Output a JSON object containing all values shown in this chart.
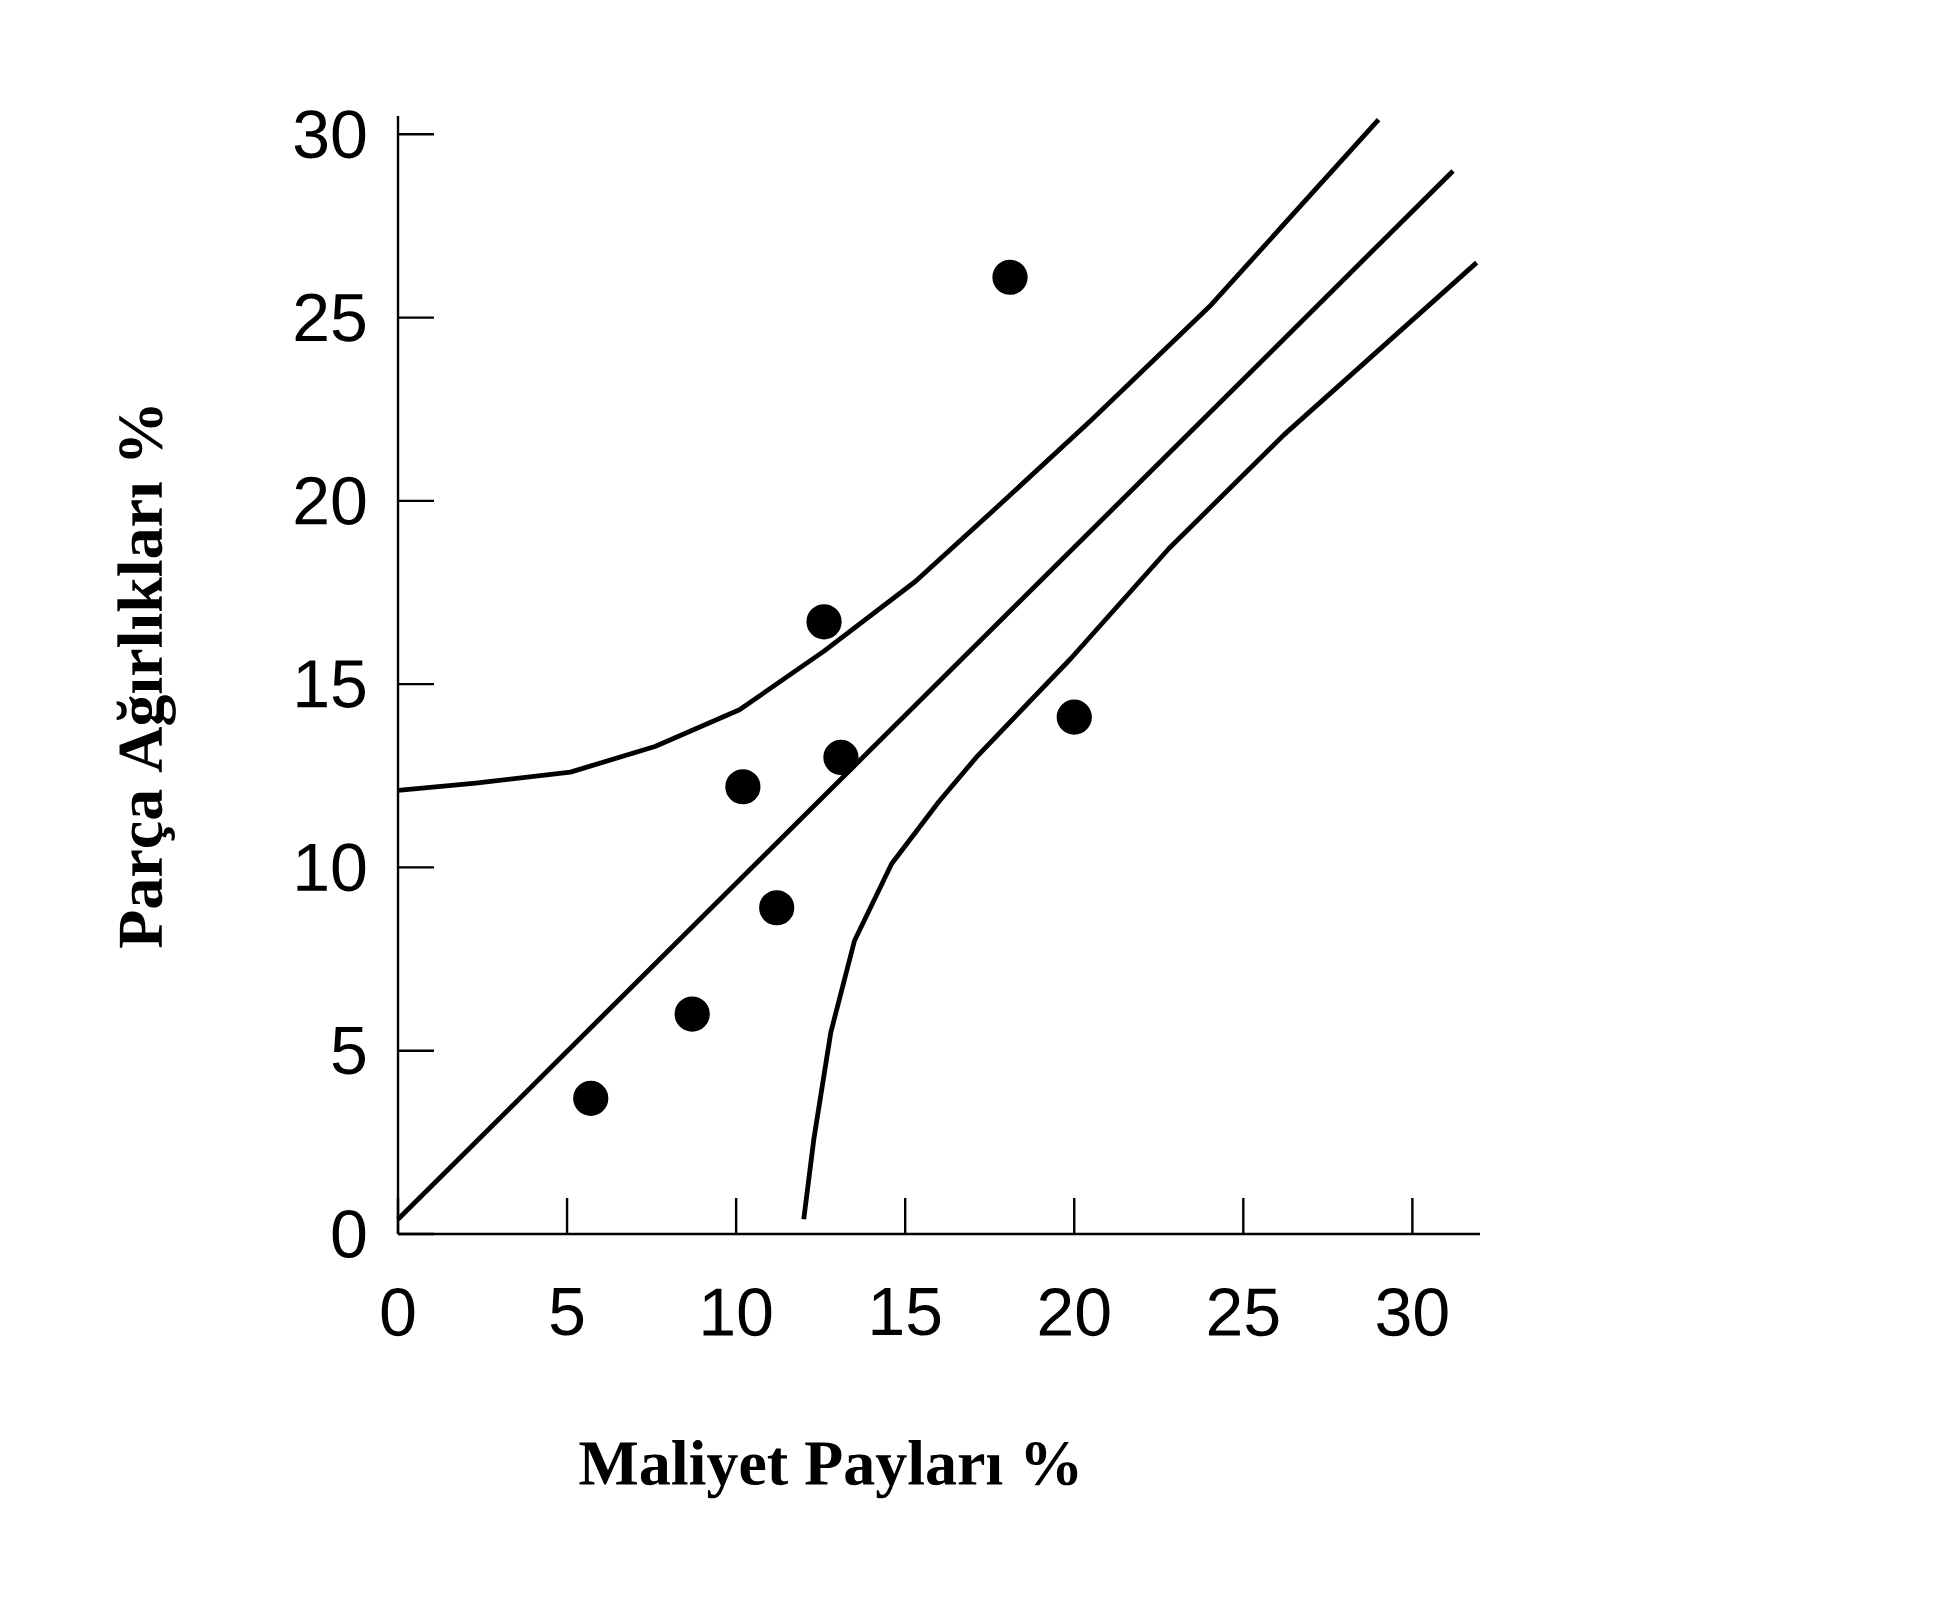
{
  "chart_data": {
    "type": "scatter",
    "xlabel": "Maliyet Payları %",
    "ylabel": "Parça Ağırlıkları %",
    "xlim": [
      0,
      32
    ],
    "ylim": [
      0,
      30.5
    ],
    "xticks": [
      0,
      5,
      10,
      15,
      20,
      25,
      30
    ],
    "yticks": [
      0,
      5,
      10,
      15,
      20,
      25,
      30
    ],
    "grid": false,
    "series": [
      {
        "type": "scatter",
        "marker": "circle",
        "color": "#000000",
        "x": [
          5.7,
          8.7,
          10.2,
          11.2,
          12.6,
          13.1,
          18.1,
          20.0
        ],
        "values": [
          3.7,
          6.0,
          12.2,
          8.9,
          16.7,
          13.0,
          26.1,
          14.1
        ]
      },
      {
        "type": "line",
        "color": "#000000",
        "marker": "none",
        "line_style": "solid",
        "x": [
          0,
          31.2
        ],
        "values": [
          0.4,
          29.0
        ]
      },
      {
        "type": "line",
        "color": "#000000",
        "marker": "none",
        "line_style": "solid",
        "x": [
          0,
          2.3,
          5.1,
          7.6,
          10.1,
          12.6,
          15.3,
          17.8,
          20.5,
          24.0,
          29.0
        ],
        "values": [
          12.1,
          12.3,
          12.6,
          13.3,
          14.3,
          15.9,
          17.8,
          19.9,
          22.2,
          25.3,
          30.4
        ]
      },
      {
        "type": "line",
        "color": "#000000",
        "marker": "none",
        "line_style": "solid",
        "x": [
          12.0,
          12.3,
          12.8,
          13.5,
          14.6,
          16.0,
          17.1,
          19.9,
          22.8,
          26.2,
          31.9
        ],
        "values": [
          0.4,
          2.6,
          5.5,
          8.0,
          10.1,
          11.8,
          13.0,
          15.7,
          18.7,
          21.8,
          26.5
        ]
      }
    ]
  }
}
